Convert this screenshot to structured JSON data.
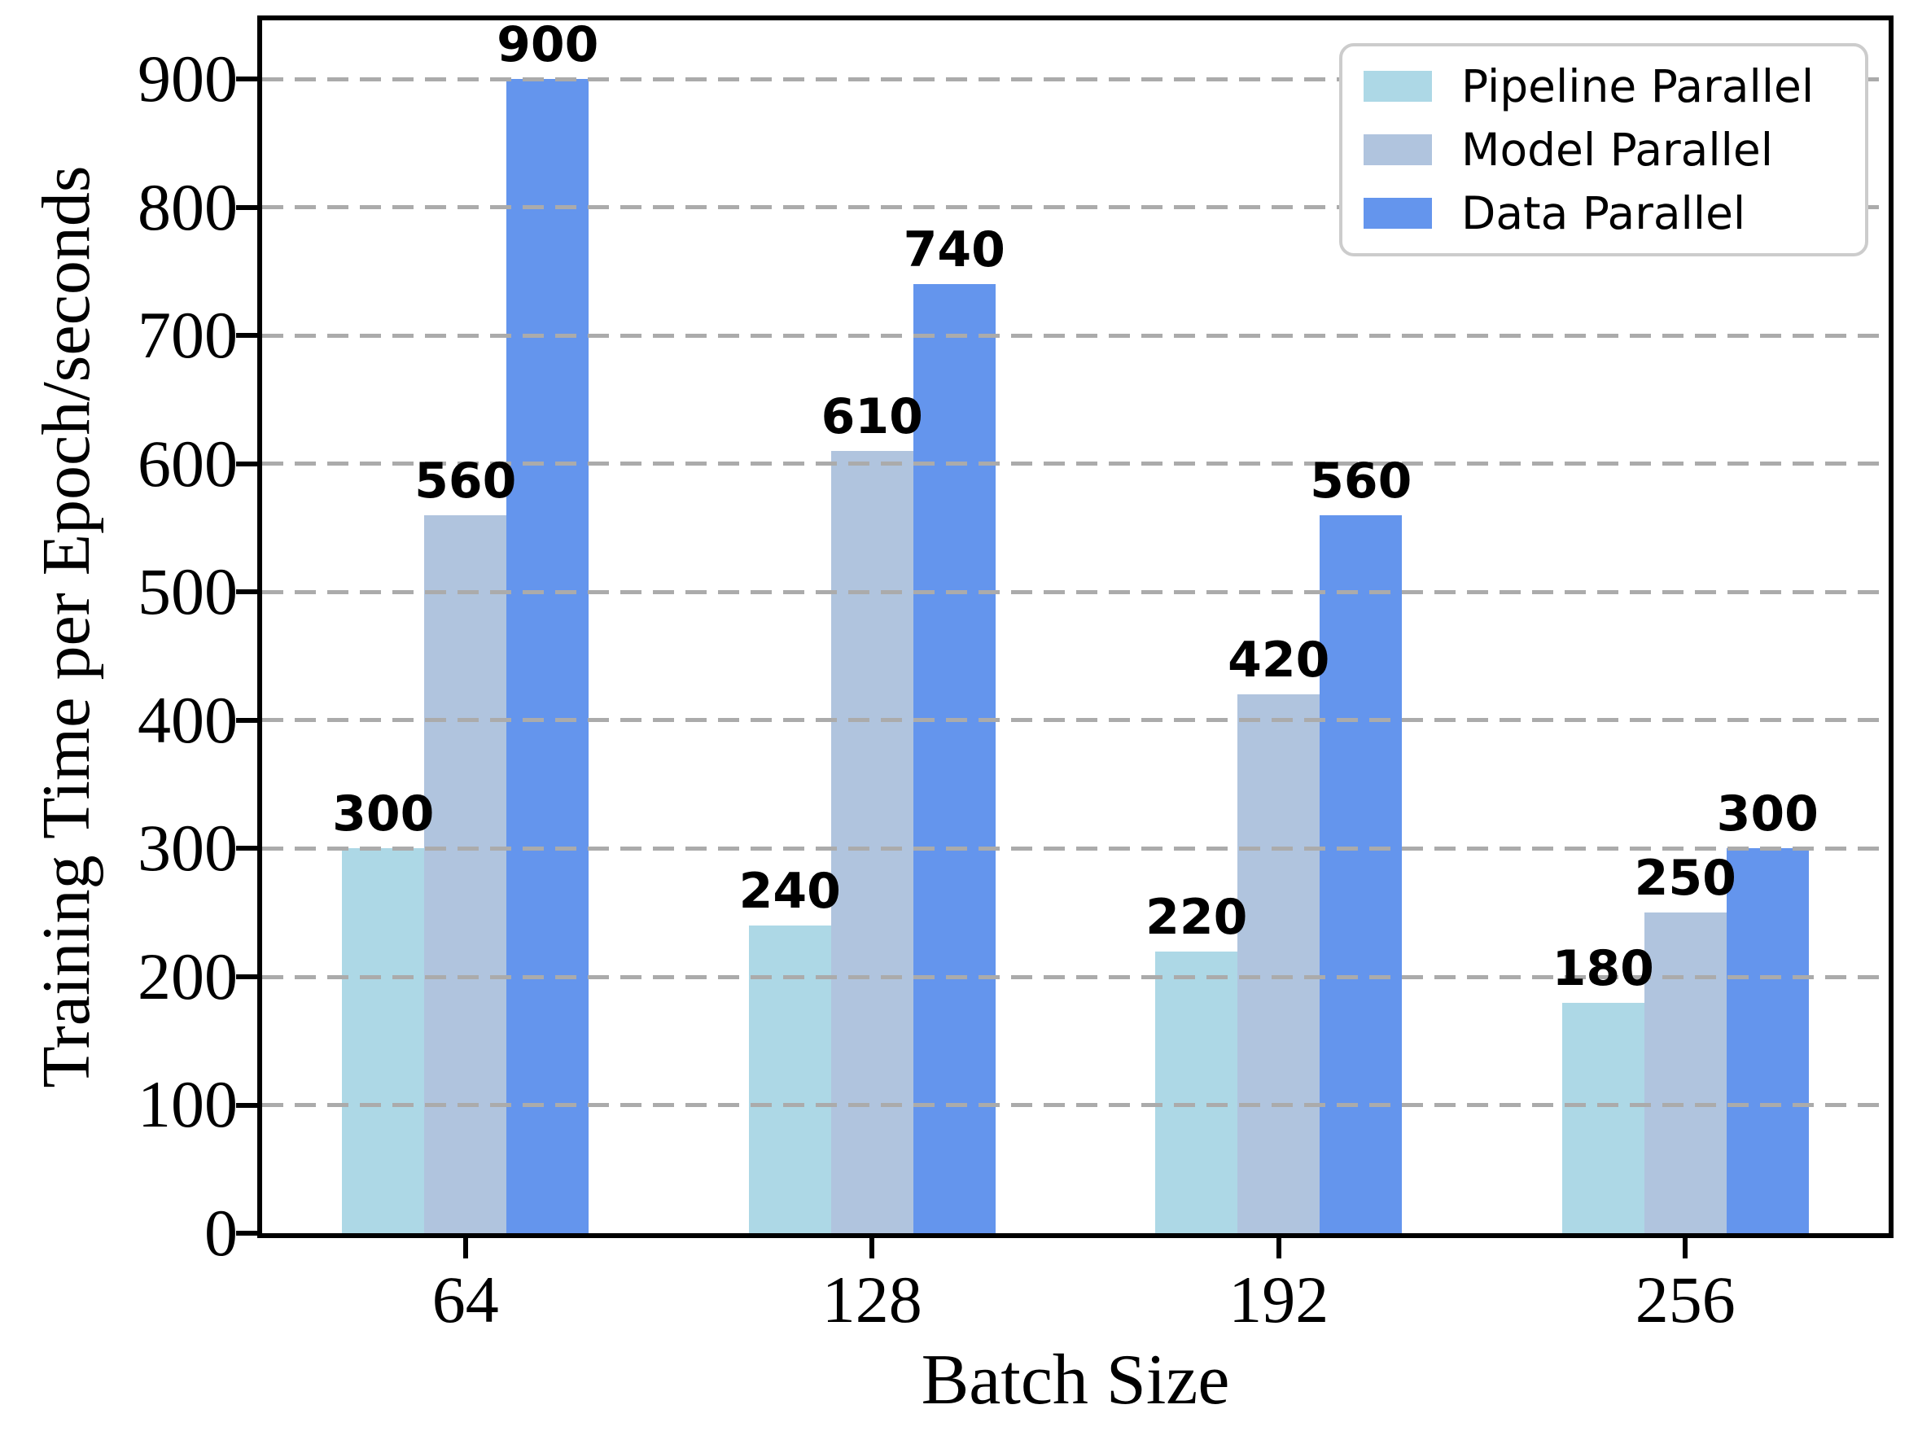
{
  "chart_data": {
    "type": "bar",
    "title": "",
    "xlabel": "Batch Size",
    "ylabel": "Training Time per Epoch/seconds",
    "categories": [
      "64",
      "128",
      "192",
      "256"
    ],
    "series": [
      {
        "name": "Pipeline Parallel",
        "color": "#ADD8E6",
        "values": [
          300,
          240,
          220,
          180
        ]
      },
      {
        "name": "Model Parallel",
        "color": "#B0C4DE",
        "values": [
          560,
          610,
          420,
          250
        ]
      },
      {
        "name": "Data Parallel",
        "color": "#6495ED",
        "values": [
          900,
          740,
          560,
          300
        ]
      }
    ],
    "bar_value_labels": [
      [
        300,
        240,
        220,
        180
      ],
      [
        560,
        610,
        420,
        250
      ],
      [
        900,
        740,
        560,
        300
      ]
    ],
    "ylim": [
      0,
      946
    ],
    "yticks": [
      0,
      100,
      200,
      300,
      400,
      500,
      600,
      700,
      800,
      900
    ],
    "grid": {
      "axis": "y",
      "style": "dashed",
      "color": "#ABABAB"
    },
    "legend_position": "top-right",
    "axis_color": "#000000",
    "background_color": "#FFFFFF"
  }
}
